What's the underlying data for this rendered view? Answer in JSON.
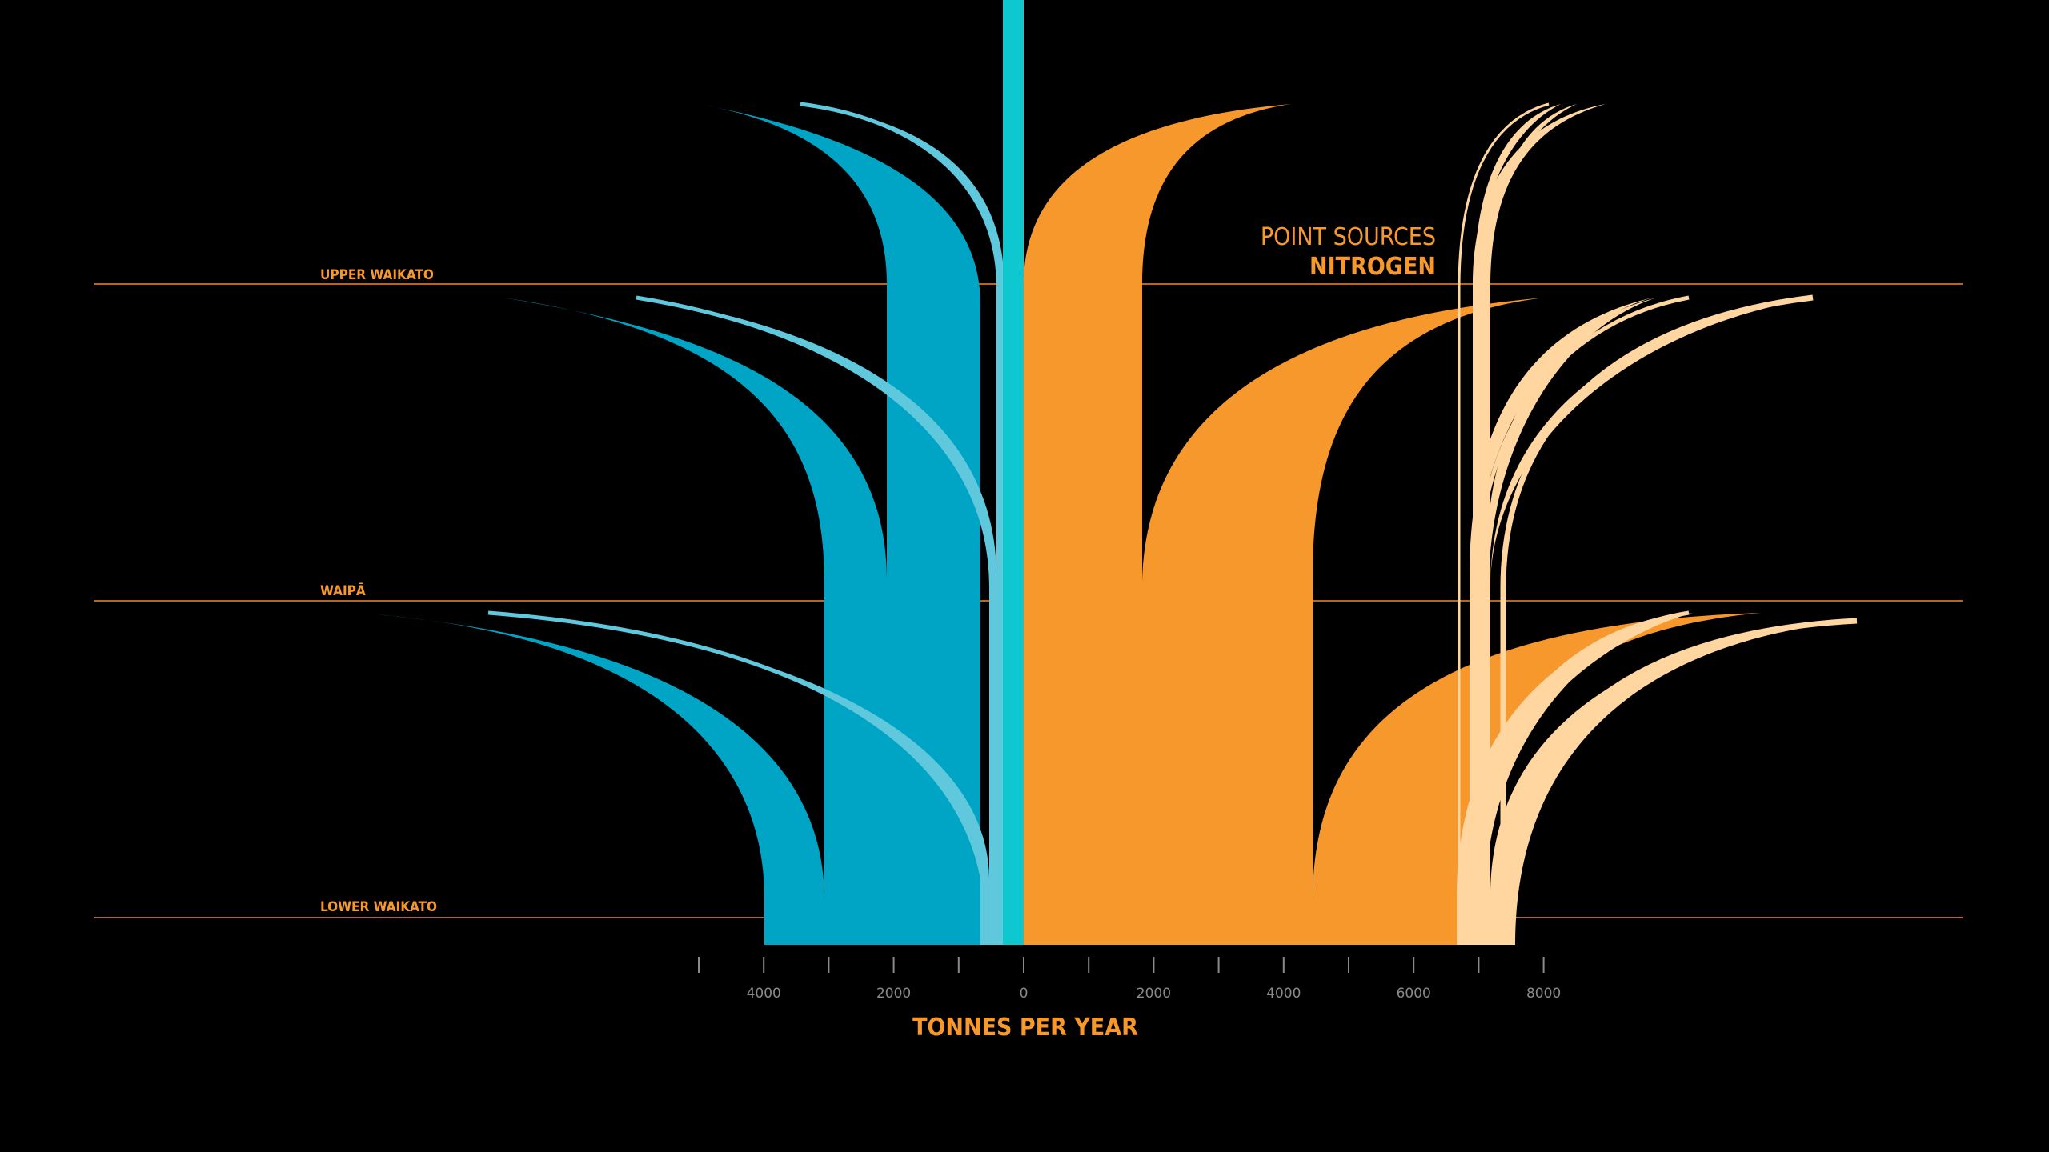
{
  "chart_data": {
    "type": "area",
    "title_line1": "POINT SOURCES",
    "title_line2": "NITROGEN",
    "xlabel": "TONNES PER YEAR",
    "x_ticks": [
      "4000",
      "2000",
      "0",
      "2000",
      "4000",
      "6000",
      "8000"
    ],
    "regions": [
      "UPPER WAIKATO",
      "WAIPĀ",
      "LOWER WAIKATO"
    ],
    "colors": {
      "background": "#000000",
      "accent": "#f7982c",
      "grid": "#b8651f",
      "tick": "#8a8a8a",
      "blue": "#00a5c6",
      "light_blue": "#5fc8dd",
      "cyan": "#0fc8cf",
      "orange": "#f7982c",
      "peach": "#ffd5a0"
    },
    "series": [
      {
        "side": "left",
        "color": "blue",
        "values": [
          1800,
          3100,
          4000
        ]
      },
      {
        "side": "left",
        "color": "light_blue",
        "values": [
          650,
          700,
          750
        ]
      },
      {
        "side": "left",
        "color": "cyan",
        "values": [
          300,
          300,
          300
        ]
      },
      {
        "side": "right",
        "color": "orange",
        "values": [
          1800,
          4400,
          6650
        ]
      },
      {
        "side": "right",
        "color": "peach",
        "values": [
          6800,
          6800,
          7000
        ]
      },
      {
        "side": "right",
        "color": "peach",
        "values": [
          7150,
          7200,
          7600
        ]
      }
    ]
  }
}
